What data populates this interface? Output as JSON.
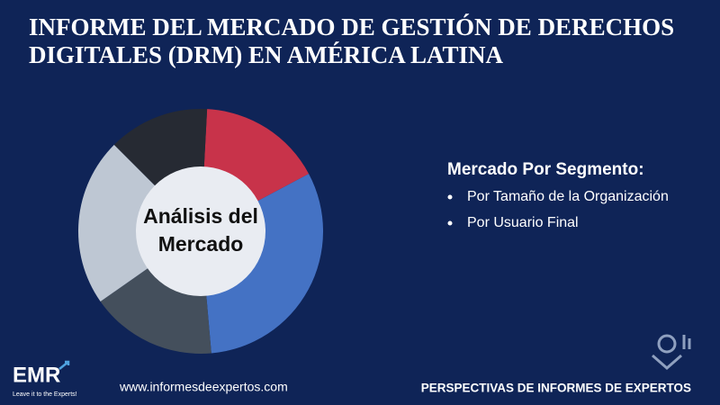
{
  "header": {
    "title_lines": [
      "INFORME DEL MERCADO DE GESTIÓN DE DERECHOS",
      "DIGITALES (DRM) EN AMÉRICA LATINA"
    ]
  },
  "diagram": {
    "center_label_lines": [
      "Análisis del",
      "Mercado"
    ]
  },
  "segments": {
    "heading": "Mercado Por Segmento:",
    "items": [
      "Por Tamaño de la Organización",
      "Por Usuario Final"
    ]
  },
  "footer": {
    "logo": "EMR",
    "logo_tagline": "Leave it to the Experts!",
    "website": "www.informesdeexpertos.com",
    "tagline": "PERSPECTIVAS DE INFORMES DE EXPERTOS"
  }
}
